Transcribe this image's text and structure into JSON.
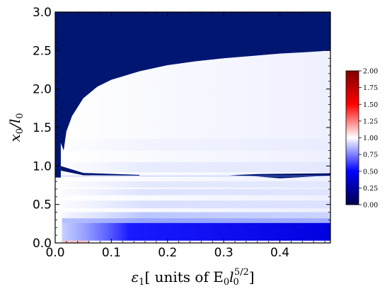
{
  "chart_data": {
    "type": "heatmap",
    "title": "",
    "xlabel_prefix": "ε",
    "xlabel_sub": "1",
    "xlabel_text": "[ units of E",
    "xlabel_sub2": "0",
    "xlabel_l": "l",
    "xlabel_sub3": "0",
    "xlabel_sup": "5/2",
    "xlabel_close": "]",
    "ylabel_x": "x",
    "ylabel_sub": "0",
    "ylabel_slash": "/l",
    "ylabel_sub2": "0",
    "xlim": [
      0.0,
      0.49
    ],
    "ylim": [
      0.0,
      3.0
    ],
    "x_ticks": [
      {
        "value": 0.0,
        "label": "0.0"
      },
      {
        "value": 0.1,
        "label": "0.1"
      },
      {
        "value": 0.2,
        "label": "0.2"
      },
      {
        "value": 0.3,
        "label": "0.3"
      },
      {
        "value": 0.4,
        "label": "0.4"
      }
    ],
    "y_ticks": [
      {
        "value": 0.0,
        "label": "0.0"
      },
      {
        "value": 0.5,
        "label": "0.5"
      },
      {
        "value": 1.0,
        "label": "1.0"
      },
      {
        "value": 1.5,
        "label": "1.5"
      },
      {
        "value": 2.0,
        "label": "2.0"
      },
      {
        "value": 2.5,
        "label": "2.5"
      },
      {
        "value": 3.0,
        "label": "3.0"
      }
    ],
    "colorbar": {
      "range": [
        0.0,
        2.0
      ],
      "colormap": "seismic",
      "ticks": [
        {
          "value": 0.0,
          "label": "0.00"
        },
        {
          "value": 0.25,
          "label": "0.25"
        },
        {
          "value": 0.5,
          "label": "0.50"
        },
        {
          "value": 0.75,
          "label": "0.75"
        },
        {
          "value": 1.0,
          "label": "1.00"
        },
        {
          "value": 1.25,
          "label": "1.25"
        },
        {
          "value": 1.5,
          "label": "1.50"
        },
        {
          "value": 1.75,
          "label": "1.75"
        },
        {
          "value": 2.0,
          "label": "2.00"
        }
      ]
    },
    "boundary_curve": [
      [
        0.0,
        3.0
      ],
      [
        0.005,
        1.7
      ],
      [
        0.01,
        1.3
      ],
      [
        0.015,
        1.2
      ],
      [
        0.02,
        1.45
      ],
      [
        0.03,
        1.65
      ],
      [
        0.05,
        1.88
      ],
      [
        0.075,
        2.03
      ],
      [
        0.1,
        2.12
      ],
      [
        0.15,
        2.23
      ],
      [
        0.2,
        2.31
      ],
      [
        0.25,
        2.36
      ],
      [
        0.3,
        2.4
      ],
      [
        0.35,
        2.43
      ],
      [
        0.4,
        2.46
      ],
      [
        0.45,
        2.48
      ],
      [
        0.49,
        2.5
      ]
    ],
    "dark_region_x_max": 0.01,
    "dark_region_y_min": 0.85,
    "strong_band": {
      "y_range": [
        0.03,
        0.26
      ],
      "x_start": 0.05,
      "value": 0.05
    },
    "thin_line_y": 0.88
  },
  "colors": {
    "dark_region": "#001670",
    "low": "#00004c",
    "mid": "#ffffff",
    "high": "#800000"
  }
}
